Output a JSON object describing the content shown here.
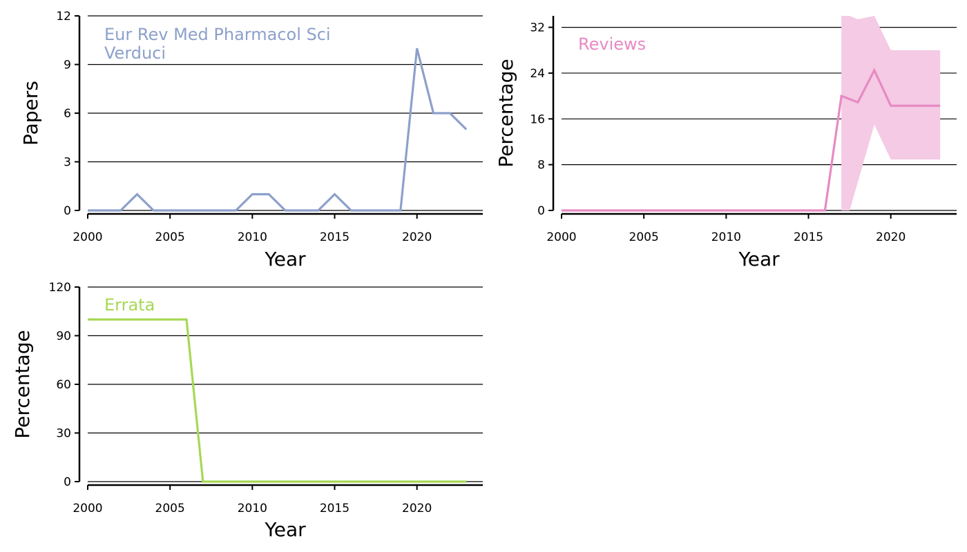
{
  "chart_data": [
    {
      "type": "line",
      "xlabel": "Year",
      "ylabel": "Papers",
      "xlim": [
        2000,
        2024
      ],
      "ylim": [
        0,
        12
      ],
      "xticks": [
        2000,
        2005,
        2010,
        2015,
        2020
      ],
      "yticks": [
        0,
        3,
        6,
        9,
        12
      ],
      "grid": "horizontal",
      "annotations": [
        "Eur Rev Med Pharmacol Sci",
        "Verduci"
      ],
      "color": "#8da0cb",
      "series": [
        {
          "x": [
            2000,
            2001,
            2002,
            2003,
            2004,
            2005,
            2006,
            2007,
            2008,
            2009,
            2010,
            2011,
            2012,
            2013,
            2014,
            2015,
            2016,
            2017,
            2018,
            2019,
            2020,
            2021,
            2022,
            2023
          ],
          "values": [
            0,
            0,
            0,
            1,
            0,
            0,
            0,
            0,
            0,
            0,
            1,
            1,
            0,
            0,
            0,
            1,
            0,
            0,
            0,
            0,
            10,
            6,
            6,
            5
          ]
        }
      ]
    },
    {
      "type": "line",
      "xlabel": "Year",
      "ylabel": "Percentage",
      "xlim": [
        2000,
        2024
      ],
      "ylim": [
        0,
        34
      ],
      "xticks": [
        2000,
        2005,
        2010,
        2015,
        2020
      ],
      "yticks": [
        0,
        8,
        16,
        24,
        32
      ],
      "grid": "horizontal",
      "annotations": [
        "Reviews"
      ],
      "color": "#e78ac3",
      "band_color": "#f4cae4",
      "series": [
        {
          "x": [
            2000,
            2001,
            2002,
            2003,
            2004,
            2005,
            2006,
            2007,
            2008,
            2009,
            2010,
            2011,
            2012,
            2013,
            2014,
            2015,
            2016,
            2017,
            2018,
            2019,
            2020,
            2021,
            2022,
            2023
          ],
          "values": [
            0,
            0,
            0,
            0,
            0,
            0,
            0,
            0,
            0,
            0,
            0,
            0,
            0,
            0,
            0,
            0,
            0,
            20,
            18.9,
            24.5,
            18.3,
            18.3,
            18.3,
            18.3
          ]
        }
      ],
      "confidence_band": {
        "x": [
          2017,
          2017.5,
          2018,
          2019,
          2020,
          2021,
          2022,
          2023
        ],
        "lower": [
          0,
          0,
          5,
          15,
          8.9,
          8.9,
          8.9,
          8.9
        ],
        "upper": [
          34,
          34,
          33.4,
          34,
          28,
          28,
          28,
          28
        ]
      }
    },
    {
      "type": "line",
      "xlabel": "Year",
      "ylabel": "Percentage",
      "xlim": [
        2000,
        2024
      ],
      "ylim": [
        0,
        120
      ],
      "xticks": [
        2000,
        2005,
        2010,
        2015,
        2020
      ],
      "yticks": [
        0,
        30,
        60,
        90,
        120
      ],
      "grid": "horizontal",
      "annotations": [
        "Errata"
      ],
      "color": "#a6d854",
      "series": [
        {
          "x": [
            2000,
            2001,
            2002,
            2003,
            2004,
            2005,
            2006,
            2007,
            2008,
            2009,
            2010,
            2011,
            2012,
            2013,
            2014,
            2015,
            2016,
            2017,
            2018,
            2019,
            2020,
            2021,
            2022,
            2023
          ],
          "values": [
            100,
            100,
            100,
            100,
            100,
            100,
            100,
            0,
            0,
            0,
            0,
            0,
            0,
            0,
            0,
            0,
            0,
            0,
            0,
            0,
            0,
            0,
            0,
            0
          ]
        }
      ]
    }
  ]
}
